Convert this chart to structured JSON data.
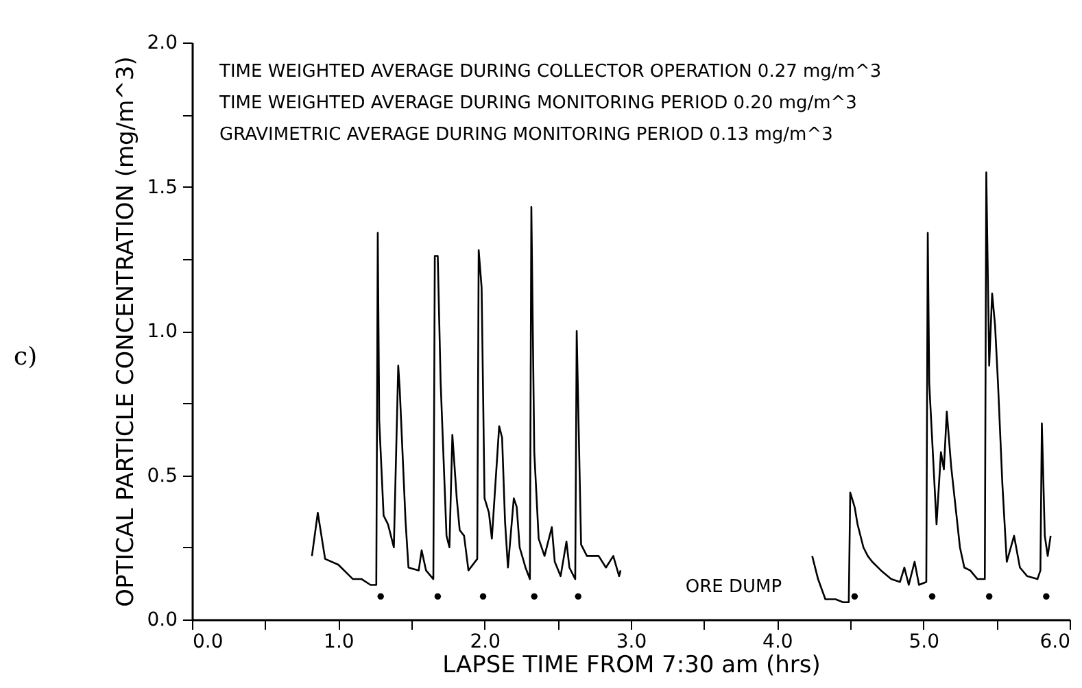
{
  "chart_data": {
    "type": "line",
    "xlabel": "LAPSE TIME FROM 7:30 am (hrs)",
    "ylabel": "OPTICAL PARTICLE CONCENTRATION (mg/m^3)",
    "xlim": [
      0,
      6
    ],
    "ylim": [
      0,
      2
    ],
    "xticks": [
      {
        "value": 0,
        "label": "0.0"
      },
      {
        "value": 0.5,
        "label": null
      },
      {
        "value": 1,
        "label": "1.0"
      },
      {
        "value": 1.5,
        "label": null
      },
      {
        "value": 2,
        "label": "2.0"
      },
      {
        "value": 2.5,
        "label": null
      },
      {
        "value": 3,
        "label": "3.0"
      },
      {
        "value": 3.5,
        "label": null
      },
      {
        "value": 4,
        "label": "4.0"
      },
      {
        "value": 4.5,
        "label": null
      },
      {
        "value": 5,
        "label": "5.0"
      },
      {
        "value": 5.5,
        "label": null
      },
      {
        "value": 6,
        "label": "6.0"
      }
    ],
    "yticks": [
      {
        "value": 0,
        "label": "0.0"
      },
      {
        "value": 0.25,
        "label": null
      },
      {
        "value": 0.5,
        "label": "0.5"
      },
      {
        "value": 0.75,
        "label": null
      },
      {
        "value": 1,
        "label": "1.0"
      },
      {
        "value": 1.25,
        "label": null
      },
      {
        "value": 1.5,
        "label": "1.5"
      },
      {
        "value": 1.75,
        "label": null
      },
      {
        "value": 2,
        "label": "2.0"
      }
    ],
    "annotations": [
      "c)",
      "TIME WEIGHTED AVERAGE DURING COLLECTOR OPERATION 0.27 mg/m^3",
      "TIME WEIGHTED AVERAGE DURING MONITORING PERIOD 0.20 mg/m^3",
      "GRAVIMETRIC AVERAGE DURING MONITORING PERIOD 0.13 mg/m^3",
      "ORE DUMP"
    ],
    "series": [
      {
        "type": "line",
        "color": "#000000",
        "x": [
          0.82,
          0.86,
          0.91,
          1.0,
          1.1,
          1.16,
          1.22,
          1.26,
          1.27,
          1.28,
          1.31,
          1.34,
          1.38,
          1.41,
          1.42,
          1.46,
          1.48,
          1.55,
          1.57,
          1.6,
          1.65,
          1.66,
          1.68,
          1.7,
          1.74,
          1.76,
          1.78,
          1.81,
          1.83,
          1.86,
          1.89,
          1.95,
          1.96,
          1.98,
          2.0,
          2.03,
          2.05,
          2.1,
          2.12,
          2.14,
          2.16,
          2.2,
          2.22,
          2.24,
          2.28,
          2.31,
          2.32,
          2.34,
          2.37,
          2.41,
          2.46,
          2.48,
          2.52,
          2.56,
          2.58,
          2.62,
          2.63,
          2.64,
          2.66,
          2.7,
          2.78,
          2.83,
          2.88,
          2.92,
          2.93,
          3.6,
          4.24,
          4.28,
          4.33,
          4.4,
          4.45,
          4.49,
          4.5,
          4.53,
          4.55,
          4.59,
          4.62,
          4.65,
          4.71,
          4.78,
          4.84,
          4.87,
          4.9,
          4.94,
          4.97,
          5.02,
          5.03,
          5.04,
          5.09,
          5.12,
          5.14,
          5.16,
          5.19,
          5.22,
          5.25,
          5.28,
          5.32,
          5.37,
          5.42,
          5.43,
          5.45,
          5.47,
          5.49,
          5.51,
          5.54,
          5.57,
          5.62,
          5.66,
          5.71,
          5.78,
          5.8,
          5.81,
          5.83,
          5.85,
          5.87
        ],
        "values": [
          0.22,
          0.37,
          0.21,
          0.19,
          0.14,
          0.14,
          0.12,
          0.12,
          1.34,
          0.69,
          0.36,
          0.33,
          0.25,
          0.88,
          0.8,
          0.34,
          0.18,
          0.17,
          0.24,
          0.17,
          0.14,
          1.26,
          1.26,
          0.82,
          0.29,
          0.25,
          0.64,
          0.42,
          0.31,
          0.29,
          0.17,
          0.21,
          1.28,
          1.15,
          0.42,
          0.37,
          0.28,
          0.67,
          0.63,
          0.34,
          0.18,
          0.42,
          0.39,
          0.25,
          0.18,
          0.14,
          1.43,
          0.58,
          0.28,
          0.22,
          0.32,
          0.2,
          0.15,
          0.27,
          0.18,
          0.14,
          1.0,
          0.75,
          0.26,
          0.22,
          0.22,
          0.18,
          0.22,
          0.15,
          0.17,
          null,
          0.22,
          0.14,
          0.07,
          0.07,
          0.06,
          0.06,
          0.44,
          0.39,
          0.33,
          0.25,
          0.22,
          0.2,
          0.17,
          0.14,
          0.13,
          0.18,
          0.12,
          0.2,
          0.12,
          0.13,
          1.34,
          0.82,
          0.33,
          0.58,
          0.52,
          0.72,
          0.53,
          0.39,
          0.25,
          0.18,
          0.17,
          0.14,
          0.14,
          1.55,
          0.88,
          1.13,
          1.02,
          0.82,
          0.47,
          0.2,
          0.29,
          0.18,
          0.15,
          0.14,
          0.17,
          0.68,
          0.29,
          0.22,
          0.29
        ]
      },
      {
        "type": "scatter",
        "color": "#000000",
        "marker": "circle",
        "x": [
          1.29,
          1.68,
          1.99,
          2.34,
          2.64,
          4.53,
          5.06,
          5.45,
          5.84
        ],
        "values": [
          0.08,
          0.08,
          0.08,
          0.08,
          0.08,
          0.08,
          0.08,
          0.08,
          0.08
        ]
      }
    ]
  }
}
